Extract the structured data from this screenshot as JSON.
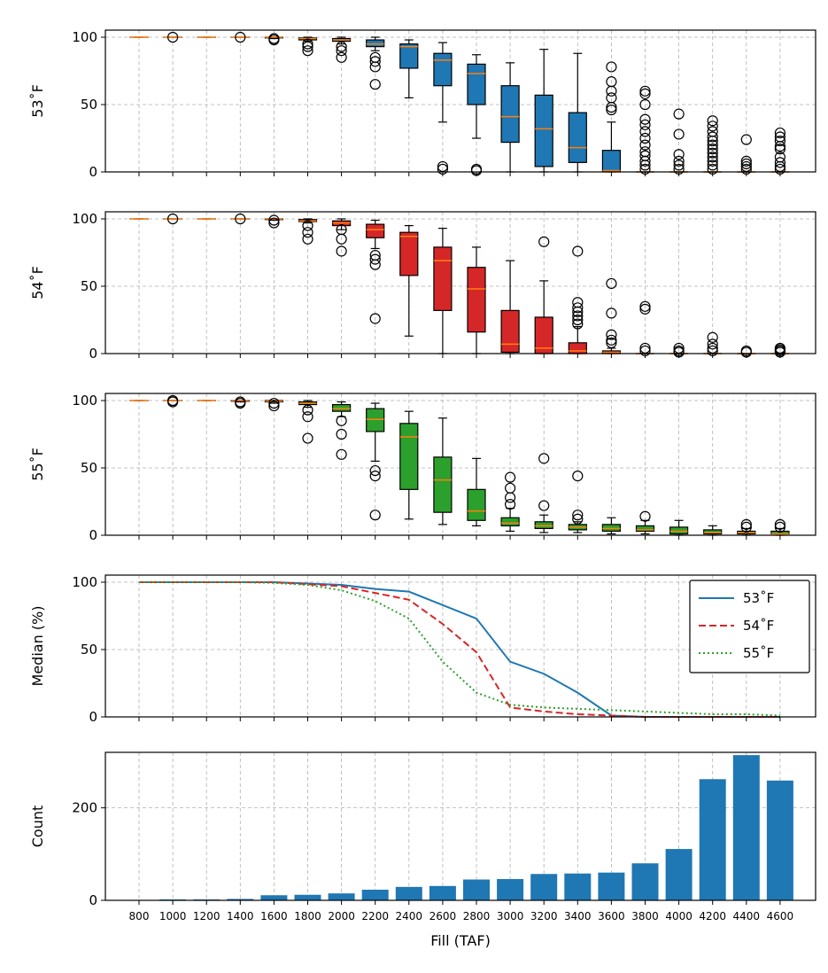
{
  "colors": {
    "t53": "#1f77b4",
    "t54": "#d62728",
    "t55": "#2ca02c",
    "median": "#ff7f0e",
    "grid": "#b0b0b0",
    "count_bar": "#1f77b4"
  },
  "chart_data": [
    {
      "type": "box",
      "ylabel": "53˚F",
      "ylim": [
        0,
        100
      ],
      "yticks": [
        "0",
        "50",
        "100"
      ],
      "grid": true,
      "color": "#1f77b4",
      "x": [
        800,
        1000,
        1200,
        1400,
        1600,
        1800,
        2000,
        2200,
        2400,
        2600,
        2800,
        3000,
        3200,
        3400,
        3600,
        3800,
        4000,
        4200,
        4400,
        4600
      ],
      "boxes": [
        {
          "q1": 100,
          "median": 100,
          "q3": 100,
          "whislo": 100,
          "whishi": 100,
          "fliers": []
        },
        {
          "q1": 100,
          "median": 100,
          "q3": 100,
          "whislo": 100,
          "whishi": 100,
          "fliers": [
            100
          ]
        },
        {
          "q1": 100,
          "median": 100,
          "q3": 100,
          "whislo": 100,
          "whishi": 100,
          "fliers": []
        },
        {
          "q1": 100,
          "median": 100,
          "q3": 100,
          "whislo": 100,
          "whishi": 100,
          "fliers": [
            100
          ]
        },
        {
          "q1": 99.5,
          "median": 100,
          "q3": 100,
          "whislo": 99,
          "whishi": 100,
          "fliers": [
            98,
            99
          ]
        },
        {
          "q1": 98,
          "median": 99,
          "q3": 99.5,
          "whislo": 97,
          "whishi": 100,
          "fliers": [
            90,
            93,
            95
          ]
        },
        {
          "q1": 97,
          "median": 98,
          "q3": 99,
          "whislo": 95,
          "whishi": 100,
          "fliers": [
            85,
            90,
            93
          ]
        },
        {
          "q1": 93,
          "median": 95,
          "q3": 98,
          "whislo": 90,
          "whishi": 100,
          "fliers": [
            65,
            78,
            82,
            85
          ]
        },
        {
          "q1": 77,
          "median": 93,
          "q3": 95,
          "whislo": 55,
          "whishi": 98,
          "fliers": []
        },
        {
          "q1": 64,
          "median": 83,
          "q3": 88,
          "whislo": 37,
          "whishi": 96,
          "fliers": [
            2,
            4
          ]
        },
        {
          "q1": 50,
          "median": 73,
          "q3": 80,
          "whislo": 25,
          "whishi": 87,
          "fliers": [
            1,
            2
          ]
        },
        {
          "q1": 22,
          "median": 41,
          "q3": 64,
          "whislo": 0,
          "whishi": 81,
          "fliers": []
        },
        {
          "q1": 4,
          "median": 32,
          "q3": 57,
          "whislo": 0,
          "whishi": 91,
          "fliers": []
        },
        {
          "q1": 7,
          "median": 18,
          "q3": 44,
          "whislo": 0,
          "whishi": 88,
          "fliers": []
        },
        {
          "q1": 0,
          "median": 1,
          "q3": 16,
          "whislo": 0,
          "whishi": 37,
          "fliers": [
            46,
            48,
            55,
            60,
            67,
            78
          ]
        },
        {
          "q1": 0,
          "median": 0,
          "q3": 0,
          "whislo": 0,
          "whishi": 0,
          "fliers": [
            2,
            5,
            8,
            12,
            15,
            20,
            25,
            30,
            35,
            39,
            50,
            58,
            60
          ]
        },
        {
          "q1": 0,
          "median": 0,
          "q3": 0,
          "whislo": 0,
          "whishi": 0,
          "fliers": [
            2,
            5,
            8,
            13,
            28,
            43
          ]
        },
        {
          "q1": 0,
          "median": 0,
          "q3": 0,
          "whislo": 0,
          "whishi": 0,
          "fliers": [
            2,
            5,
            8,
            11,
            14,
            17,
            20,
            23,
            26,
            30,
            34,
            38
          ]
        },
        {
          "q1": 0,
          "median": 0,
          "q3": 0,
          "whislo": 0,
          "whishi": 0,
          "fliers": [
            2,
            4,
            6,
            8,
            24
          ]
        },
        {
          "q1": 0,
          "median": 0,
          "q3": 0,
          "whislo": 0,
          "whishi": 0,
          "fliers": [
            2,
            4,
            7,
            11,
            17,
            19,
            23,
            26,
            29
          ]
        }
      ]
    },
    {
      "type": "box",
      "ylabel": "54˚F",
      "ylim": [
        0,
        100
      ],
      "yticks": [
        "0",
        "50",
        "100"
      ],
      "grid": true,
      "color": "#d62728",
      "x": [
        800,
        1000,
        1200,
        1400,
        1600,
        1800,
        2000,
        2200,
        2400,
        2600,
        2800,
        3000,
        3200,
        3400,
        3600,
        3800,
        4000,
        4200,
        4400,
        4600
      ],
      "boxes": [
        {
          "q1": 100,
          "median": 100,
          "q3": 100,
          "whislo": 100,
          "whishi": 100,
          "fliers": []
        },
        {
          "q1": 100,
          "median": 100,
          "q3": 100,
          "whislo": 100,
          "whishi": 100,
          "fliers": [
            100
          ]
        },
        {
          "q1": 100,
          "median": 100,
          "q3": 100,
          "whislo": 100,
          "whishi": 100,
          "fliers": []
        },
        {
          "q1": 100,
          "median": 100,
          "q3": 100,
          "whislo": 100,
          "whishi": 100,
          "fliers": [
            100
          ]
        },
        {
          "q1": 99.5,
          "median": 100,
          "q3": 100,
          "whislo": 99,
          "whishi": 100,
          "fliers": [
            97,
            99
          ]
        },
        {
          "q1": 98,
          "median": 98.5,
          "q3": 99.5,
          "whislo": 97,
          "whishi": 100,
          "fliers": [
            85,
            90,
            95
          ]
        },
        {
          "q1": 95,
          "median": 97,
          "q3": 98.5,
          "whislo": 92,
          "whishi": 100,
          "fliers": [
            76,
            85,
            92
          ]
        },
        {
          "q1": 86,
          "median": 92,
          "q3": 96,
          "whislo": 78,
          "whishi": 99,
          "fliers": [
            26,
            66,
            70,
            73
          ]
        },
        {
          "q1": 58,
          "median": 87,
          "q3": 90,
          "whislo": 13,
          "whishi": 95,
          "fliers": []
        },
        {
          "q1": 32,
          "median": 69,
          "q3": 79,
          "whislo": 0,
          "whishi": 93,
          "fliers": []
        },
        {
          "q1": 16,
          "median": 48,
          "q3": 64,
          "whislo": 0,
          "whishi": 79,
          "fliers": []
        },
        {
          "q1": 1,
          "median": 7,
          "q3": 32,
          "whislo": 0,
          "whishi": 69,
          "fliers": []
        },
        {
          "q1": 0,
          "median": 4,
          "q3": 27,
          "whislo": 0,
          "whishi": 54,
          "fliers": [
            83
          ]
        },
        {
          "q1": 0,
          "median": 2,
          "q3": 8,
          "whislo": 0,
          "whishi": 20,
          "fliers": [
            22,
            25,
            28,
            31,
            34,
            38,
            76
          ]
        },
        {
          "q1": 0,
          "median": 1,
          "q3": 2,
          "whislo": 0,
          "whishi": 4,
          "fliers": [
            8,
            10,
            14,
            30,
            52
          ]
        },
        {
          "q1": 0,
          "median": 0,
          "q3": 0,
          "whislo": 0,
          "whishi": 0,
          "fliers": [
            2,
            4,
            33,
            35
          ]
        },
        {
          "q1": 0,
          "median": 0,
          "q3": 0,
          "whislo": 0,
          "whishi": 0,
          "fliers": [
            1,
            2,
            4
          ]
        },
        {
          "q1": 0,
          "median": 0,
          "q3": 0,
          "whislo": 0,
          "whishi": 0,
          "fliers": [
            2,
            4,
            7,
            12
          ]
        },
        {
          "q1": 0,
          "median": 0,
          "q3": 0,
          "whislo": 0,
          "whishi": 0,
          "fliers": [
            1,
            2
          ]
        },
        {
          "q1": 0,
          "median": 0,
          "q3": 0,
          "whislo": 0,
          "whishi": 0,
          "fliers": [
            1,
            2,
            3,
            4
          ]
        }
      ]
    },
    {
      "type": "box",
      "ylabel": "55˚F",
      "ylim": [
        0,
        100
      ],
      "yticks": [
        "0",
        "50",
        "100"
      ],
      "grid": true,
      "color": "#2ca02c",
      "x": [
        800,
        1000,
        1200,
        1400,
        1600,
        1800,
        2000,
        2200,
        2400,
        2600,
        2800,
        3000,
        3200,
        3400,
        3600,
        3800,
        4000,
        4200,
        4400,
        4600
      ],
      "boxes": [
        {
          "q1": 100,
          "median": 100,
          "q3": 100,
          "whislo": 100,
          "whishi": 100,
          "fliers": []
        },
        {
          "q1": 100,
          "median": 100,
          "q3": 100,
          "whislo": 100,
          "whishi": 100,
          "fliers": [
            99,
            100
          ]
        },
        {
          "q1": 100,
          "median": 100,
          "q3": 100,
          "whislo": 100,
          "whishi": 100,
          "fliers": []
        },
        {
          "q1": 99.5,
          "median": 100,
          "q3": 100,
          "whislo": 99,
          "whishi": 100,
          "fliers": [
            98,
            99
          ]
        },
        {
          "q1": 99,
          "median": 99.5,
          "q3": 100,
          "whislo": 98,
          "whishi": 100,
          "fliers": [
            96,
            98
          ]
        },
        {
          "q1": 97,
          "median": 98,
          "q3": 99,
          "whislo": 95,
          "whishi": 100,
          "fliers": [
            72,
            88,
            93
          ]
        },
        {
          "q1": 92,
          "median": 94,
          "q3": 97,
          "whislo": 88,
          "whishi": 99,
          "fliers": [
            60,
            75,
            85
          ]
        },
        {
          "q1": 77,
          "median": 86,
          "q3": 94,
          "whislo": 55,
          "whishi": 98,
          "fliers": [
            15,
            44,
            48
          ]
        },
        {
          "q1": 34,
          "median": 73,
          "q3": 83,
          "whislo": 12,
          "whishi": 92,
          "fliers": []
        },
        {
          "q1": 17,
          "median": 41,
          "q3": 58,
          "whislo": 8,
          "whishi": 87,
          "fliers": []
        },
        {
          "q1": 11,
          "median": 18,
          "q3": 34,
          "whislo": 7,
          "whishi": 57,
          "fliers": []
        },
        {
          "q1": 7,
          "median": 9,
          "q3": 13,
          "whislo": 3,
          "whishi": 20,
          "fliers": [
            23,
            28,
            35,
            43
          ]
        },
        {
          "q1": 5,
          "median": 7,
          "q3": 10,
          "whislo": 2,
          "whishi": 15,
          "fliers": [
            22,
            57
          ]
        },
        {
          "q1": 4,
          "median": 6,
          "q3": 8,
          "whislo": 2,
          "whishi": 10,
          "fliers": [
            12,
            15,
            44
          ]
        },
        {
          "q1": 3,
          "median": 5,
          "q3": 8,
          "whislo": 1,
          "whishi": 13,
          "fliers": []
        },
        {
          "q1": 3,
          "median": 4,
          "q3": 7,
          "whislo": 1,
          "whishi": 11,
          "fliers": [
            14
          ]
        },
        {
          "q1": 1,
          "median": 3,
          "q3": 6,
          "whislo": 0,
          "whishi": 11,
          "fliers": []
        },
        {
          "q1": 1,
          "median": 2,
          "q3": 4,
          "whislo": 0,
          "whishi": 7,
          "fliers": []
        },
        {
          "q1": 1,
          "median": 2,
          "q3": 3,
          "whislo": 0,
          "whishi": 5,
          "fliers": [
            6,
            8
          ]
        },
        {
          "q1": 1,
          "median": 1,
          "q3": 3,
          "whislo": 0,
          "whishi": 5,
          "fliers": [
            6,
            8
          ]
        }
      ]
    },
    {
      "type": "line",
      "ylabel": "Median (%)",
      "ylim": [
        0,
        100
      ],
      "yticks": [
        "0",
        "50",
        "100"
      ],
      "grid": true,
      "legend_position": "upper right",
      "x": [
        800,
        1000,
        1200,
        1400,
        1600,
        1800,
        2000,
        2200,
        2400,
        2600,
        2800,
        3000,
        3200,
        3400,
        3600,
        3800,
        4000,
        4200,
        4400,
        4600
      ],
      "series": [
        {
          "name": "53˚F",
          "color": "#1f77b4",
          "style": "solid",
          "values": [
            100,
            100,
            100,
            100,
            100,
            99,
            98,
            95,
            93,
            83,
            73,
            41,
            32,
            18,
            1,
            0,
            0,
            0,
            0,
            0
          ]
        },
        {
          "name": "54˚F",
          "color": "#d62728",
          "style": "dashed",
          "values": [
            100,
            100,
            100,
            100,
            100,
            98.5,
            97,
            92,
            87,
            69,
            48,
            7,
            4,
            2,
            1,
            0,
            0,
            0,
            0,
            0
          ]
        },
        {
          "name": "55˚F",
          "color": "#2ca02c",
          "style": "dotted",
          "values": [
            100,
            100,
            100,
            100,
            99.5,
            98,
            94,
            86,
            73,
            41,
            18,
            9,
            7,
            6,
            5,
            4,
            3,
            2,
            2,
            1
          ]
        }
      ]
    },
    {
      "type": "bar",
      "ylabel": "Count",
      "xlabel": "Fill (TAF)",
      "ylim": [
        0,
        320
      ],
      "yticks": [
        "0",
        "200"
      ],
      "grid": true,
      "color": "#1f77b4",
      "categories": [
        "800",
        "1000",
        "1200",
        "1400",
        "1600",
        "1800",
        "2000",
        "2200",
        "2400",
        "2600",
        "2800",
        "3000",
        "3200",
        "3400",
        "3600",
        "3800",
        "4000",
        "4200",
        "4400",
        "4600"
      ],
      "values": [
        1,
        2,
        2,
        3,
        11,
        12,
        15,
        23,
        29,
        31,
        45,
        46,
        57,
        58,
        60,
        80,
        111,
        262,
        314,
        259
      ]
    }
  ]
}
